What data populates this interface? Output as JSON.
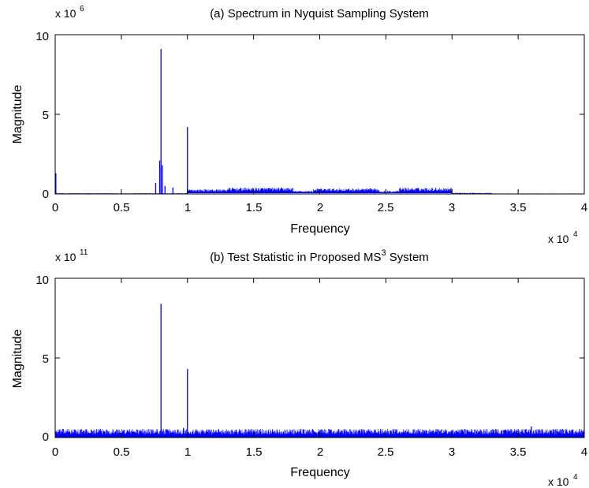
{
  "chart_data": [
    {
      "type": "line",
      "title": "(a) Spectrum in Nyquist Sampling System",
      "title_superscript": "",
      "title_suffix": "",
      "xlabel": "Frequency",
      "ylabel": "Magnitude",
      "xlim": [
        0,
        40000
      ],
      "ylim": [
        0,
        10
      ],
      "x_ticks": [
        0,
        5000,
        10000,
        15000,
        20000,
        25000,
        30000,
        35000,
        40000
      ],
      "x_tick_labels": [
        "0",
        "0.5",
        "1",
        "1.5",
        "2",
        "2.5",
        "3",
        "3.5",
        "4"
      ],
      "y_ticks": [
        0,
        5,
        10
      ],
      "y_tick_labels": [
        "0",
        "5",
        "10"
      ],
      "x_multiplier": {
        "base": "x 10",
        "exp": "4"
      },
      "y_multiplier": {
        "base": "x 10",
        "exp": "6"
      },
      "grid": false,
      "line_color": "#0000ff",
      "spikes": [
        {
          "x": 50,
          "y": 1.3
        },
        {
          "x": 7600,
          "y": 0.7
        },
        {
          "x": 7900,
          "y": 2.1
        },
        {
          "x": 8000,
          "y": 9.1
        },
        {
          "x": 8100,
          "y": 1.8
        },
        {
          "x": 8300,
          "y": 0.5
        },
        {
          "x": 8900,
          "y": 0.4
        },
        {
          "x": 10000,
          "y": 4.2
        }
      ],
      "floor_bands": [
        {
          "x_start": 0,
          "x_end": 10000,
          "min": 0.0,
          "max": 0.05
        },
        {
          "x_start": 10000,
          "x_end": 13000,
          "min": 0.05,
          "max": 0.3
        },
        {
          "x_start": 13000,
          "x_end": 18000,
          "min": 0.05,
          "max": 0.4
        },
        {
          "x_start": 18000,
          "x_end": 19500,
          "min": 0.05,
          "max": 0.2
        },
        {
          "x_start": 19500,
          "x_end": 21500,
          "min": 0.05,
          "max": 0.35
        },
        {
          "x_start": 21500,
          "x_end": 24500,
          "min": 0.05,
          "max": 0.35
        },
        {
          "x_start": 24500,
          "x_end": 26000,
          "min": 0.05,
          "max": 0.2
        },
        {
          "x_start": 26000,
          "x_end": 30000,
          "min": 0.05,
          "max": 0.4
        },
        {
          "x_start": 30000,
          "x_end": 33000,
          "min": 0.0,
          "max": 0.08
        },
        {
          "x_start": 33000,
          "x_end": 40000,
          "min": 0.0,
          "max": 0.03
        }
      ]
    },
    {
      "type": "line",
      "title": "(b) Test Statistic in Proposed MS",
      "title_superscript": "3",
      "title_suffix": " System",
      "xlabel": "Frequency",
      "ylabel": "Magnitude",
      "xlim": [
        0,
        40000
      ],
      "ylim": [
        0,
        10
      ],
      "x_ticks": [
        0,
        5000,
        10000,
        15000,
        20000,
        25000,
        30000,
        35000,
        40000
      ],
      "x_tick_labels": [
        "0",
        "0.5",
        "1",
        "1.5",
        "2",
        "2.5",
        "3",
        "3.5",
        "4"
      ],
      "y_ticks": [
        0,
        5,
        10
      ],
      "y_tick_labels": [
        "0",
        "5",
        "10"
      ],
      "x_multiplier": {
        "base": "x 10",
        "exp": "4"
      },
      "y_multiplier": {
        "base": "x 10",
        "exp": "11"
      },
      "grid": false,
      "line_color": "#0000ff",
      "spikes": [
        {
          "x": 8000,
          "y": 8.4
        },
        {
          "x": 10000,
          "y": 4.3
        },
        {
          "x": 9700,
          "y": 0.6
        },
        {
          "x": 36000,
          "y": 0.7
        }
      ],
      "floor_bands": [
        {
          "x_start": 0,
          "x_end": 40000,
          "min": 0.02,
          "max": 0.55
        }
      ]
    }
  ]
}
